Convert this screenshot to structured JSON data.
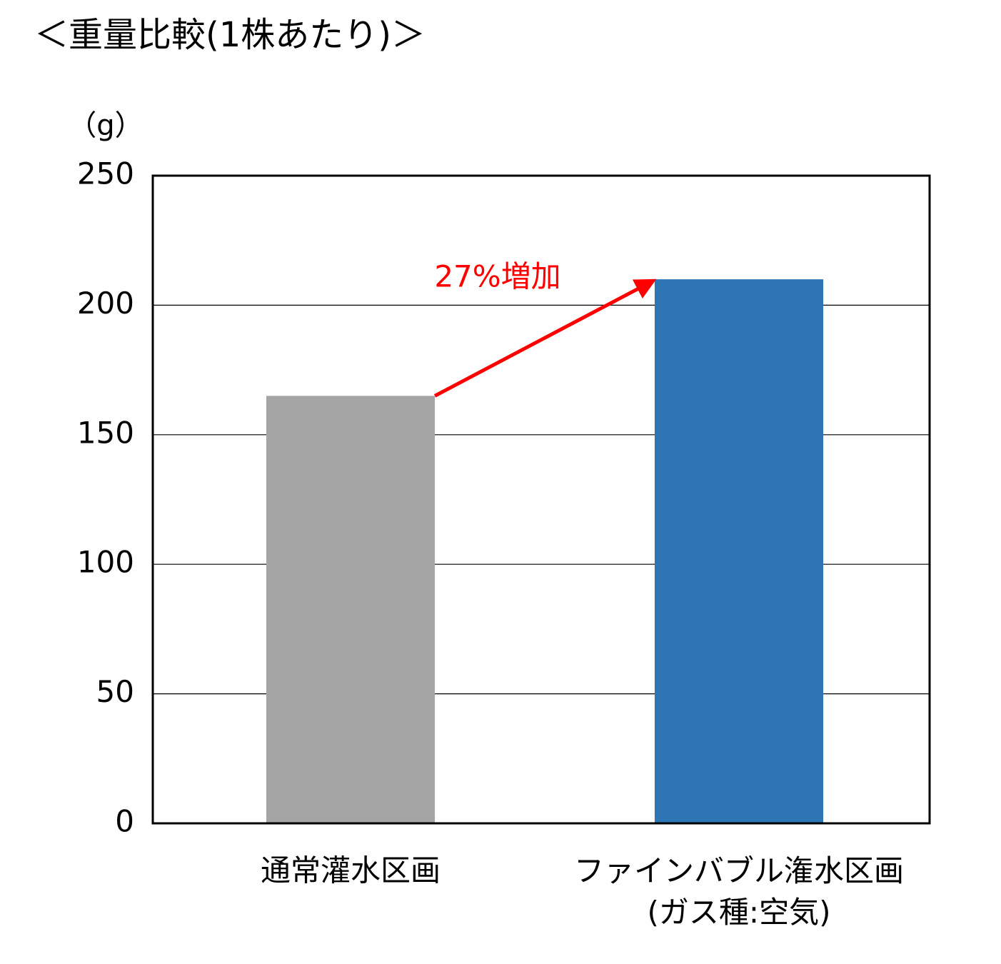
{
  "chart_data": {
    "type": "bar",
    "title": "＜重量比較(1株あたり)＞",
    "y_label": "（g）",
    "categories": [
      "通常灌水区画",
      "ファインバブル潅水区画\n(ガス種:空気)"
    ],
    "values": [
      165,
      210
    ],
    "colors": [
      "#a5a5a5",
      "#2e75b5"
    ],
    "annotation": "27%増加",
    "annotation_color": "#ff0000",
    "ylim": [
      0,
      250
    ],
    "yticks": [
      0,
      50,
      100,
      150,
      200,
      250
    ],
    "grid": true
  }
}
